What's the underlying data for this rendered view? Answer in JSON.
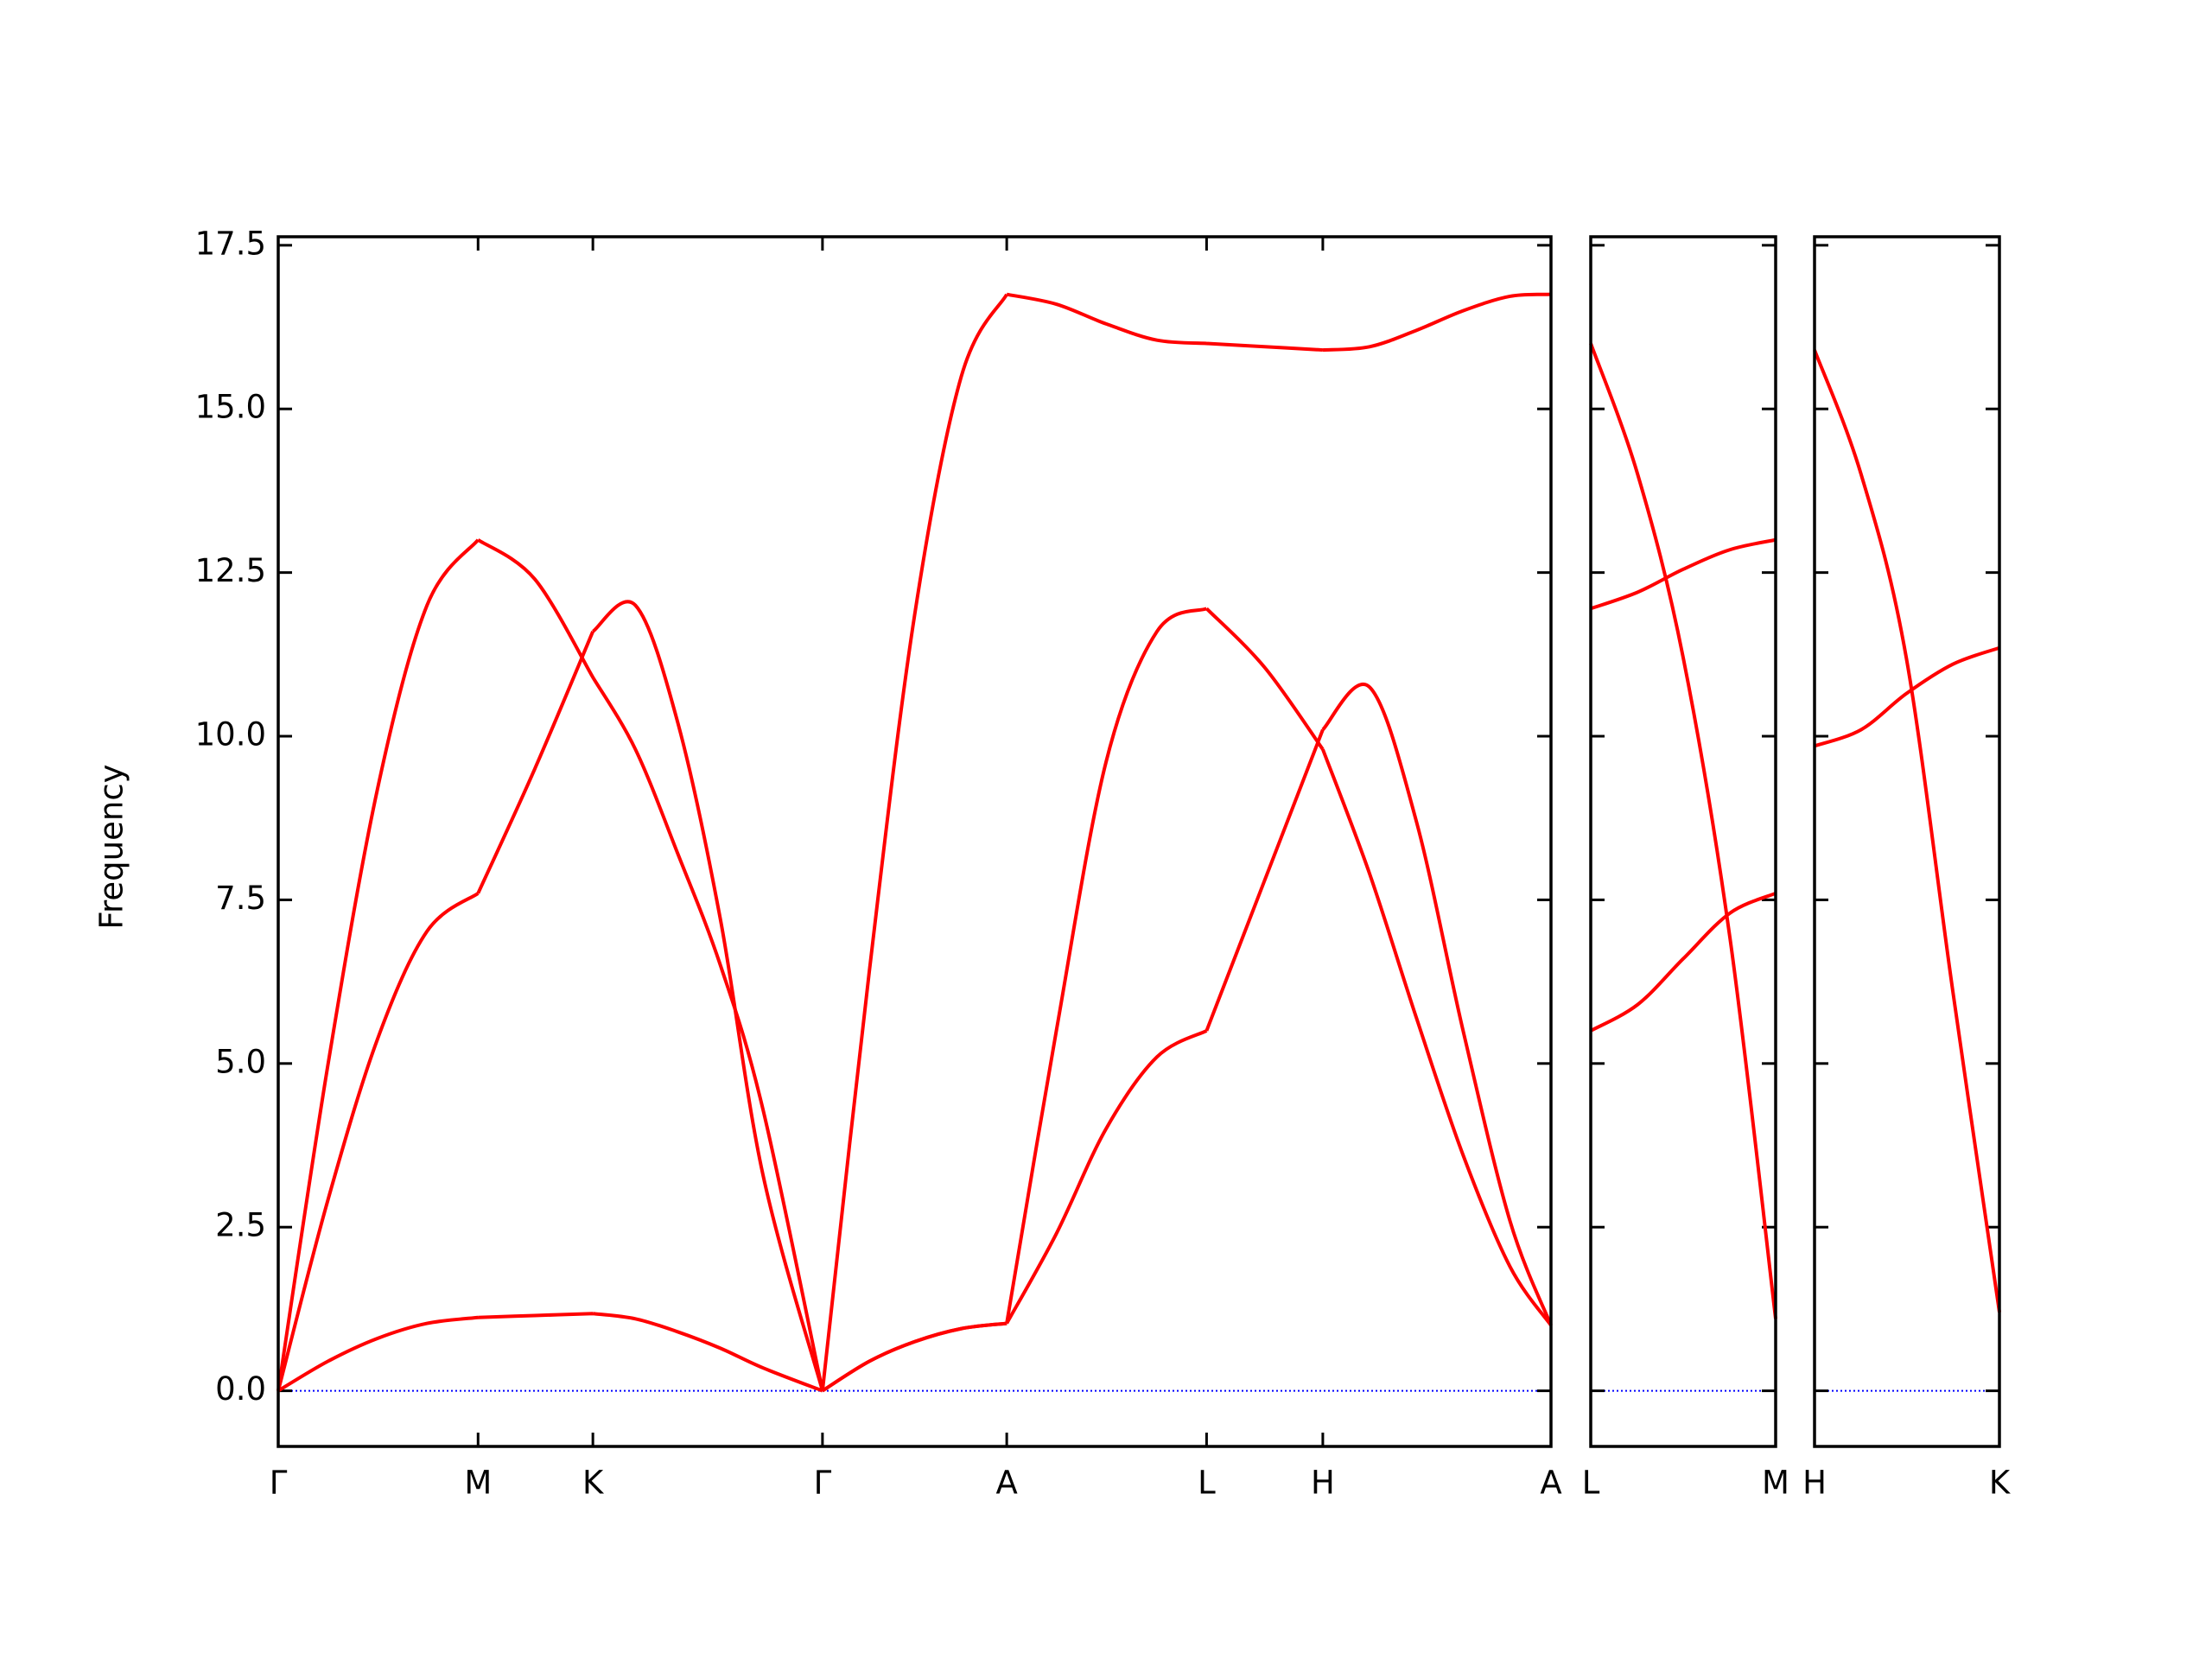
{
  "chart_data": [
    {
      "type": "line",
      "y_label": "Frequency",
      "x": [
        0,
        0.35,
        0.7,
        1.05,
        1.41,
        1.81,
        2.22,
        2.52,
        2.82,
        3.12,
        3.42,
        3.84,
        4.17,
        4.49,
        4.82,
        5.14,
        5.49,
        5.84,
        6.2,
        6.55,
        6.96,
        7.37,
        7.7,
        8.03,
        8.36,
        8.69,
        8.98
      ],
      "series": [
        {
          "color": "#ff0000",
          "values": [
            0,
            4.97,
            9.19,
            12.0,
            13.0,
            12.4,
            10.9,
            9.8,
            8.2,
            6.5,
            4.3,
            0,
            6.4,
            11.85,
            15.5,
            16.75,
            16.6,
            16.3,
            16.05,
            16.0,
            15.95,
            15.9,
            15.95,
            16.2,
            16.5,
            16.72,
            16.75
          ]
        },
        {
          "color": "#ff0000",
          "values": [
            0,
            2.91,
            5.37,
            7.02,
            7.6,
            9.5,
            11.6,
            12.0,
            10.2,
            7.2,
            3.3,
            0,
            0.45,
            0.75,
            0.95,
            1.03,
            5.5,
            9.6,
            11.6,
            11.95,
            11.05,
            9.8,
            7.9,
            5.7,
            3.6,
            1.9,
            1.0
          ]
        },
        {
          "color": "#ff0000",
          "values": [
            0,
            0.45,
            0.8,
            1.03,
            1.12,
            1.15,
            1.18,
            1.1,
            0.9,
            0.65,
            0.35,
            0,
            0.45,
            0.75,
            0.95,
            1.03,
            2.4,
            4.0,
            5.1,
            5.5,
            7.8,
            10.1,
            10.75,
            8.7,
            5.5,
            2.6,
            1.0
          ]
        }
      ],
      "xlim": [
        0,
        8.98
      ],
      "xticks": [
        {
          "value": 0,
          "label": "Γ"
        },
        {
          "value": 1.41,
          "label": "M"
        },
        {
          "value": 2.22,
          "label": "K"
        },
        {
          "value": 3.84,
          "label": "Γ"
        },
        {
          "value": 5.14,
          "label": "A"
        },
        {
          "value": 6.55,
          "label": "L"
        },
        {
          "value": 7.37,
          "label": "H"
        },
        {
          "value": 8.98,
          "label": "A"
        }
      ],
      "ylim": [
        -0.85,
        17.63
      ],
      "yticks": [
        {
          "value": 0,
          "label": "0.0"
        },
        {
          "value": 2.5,
          "label": "2.5"
        },
        {
          "value": 5,
          "label": "5.0"
        },
        {
          "value": 7.5,
          "label": "7.5"
        },
        {
          "value": 10,
          "label": "10.0"
        },
        {
          "value": 12.5,
          "label": "12.5"
        },
        {
          "value": 15,
          "label": "15.0"
        },
        {
          "value": 17.5,
          "label": "17.5"
        }
      ],
      "hline": 0,
      "hline_color": "#0000ff"
    },
    {
      "type": "line",
      "x": [
        0,
        0.33,
        0.65,
        0.98,
        1.3
      ],
      "series": [
        {
          "color": "#ff0000",
          "values": [
            16.0,
            14.0,
            11.2,
            6.9,
            1.1
          ]
        },
        {
          "color": "#ff0000",
          "values": [
            11.95,
            12.2,
            12.55,
            12.85,
            13.0
          ]
        },
        {
          "color": "#ff0000",
          "values": [
            5.5,
            5.9,
            6.6,
            7.3,
            7.6
          ]
        }
      ],
      "xlim": [
        0,
        1.3
      ],
      "xticks": [
        {
          "value": 0,
          "label": "L"
        },
        {
          "value": 1.3,
          "label": "M"
        }
      ],
      "ylim": [
        -0.85,
        17.63
      ],
      "yticks": [
        0,
        2.5,
        5,
        7.5,
        10,
        12.5,
        15,
        17.5
      ],
      "hline": 0,
      "hline_color": "#0000ff"
    },
    {
      "type": "line",
      "x": [
        0,
        0.33,
        0.65,
        0.98,
        1.31
      ],
      "series": [
        {
          "color": "#ff0000",
          "values": [
            15.9,
            14.0,
            11.2,
            6.1,
            1.2
          ]
        },
        {
          "color": "#ff0000",
          "values": [
            9.85,
            10.1,
            10.65,
            11.1,
            11.35
          ]
        }
      ],
      "xlim": [
        0,
        1.31
      ],
      "xticks": [
        {
          "value": 0,
          "label": "H"
        },
        {
          "value": 1.31,
          "label": "K"
        }
      ],
      "ylim": [
        -0.85,
        17.63
      ],
      "yticks": [
        0,
        2.5,
        5,
        7.5,
        10,
        12.5,
        15,
        17.5
      ],
      "hline": 0,
      "hline_color": "#0000ff"
    }
  ]
}
